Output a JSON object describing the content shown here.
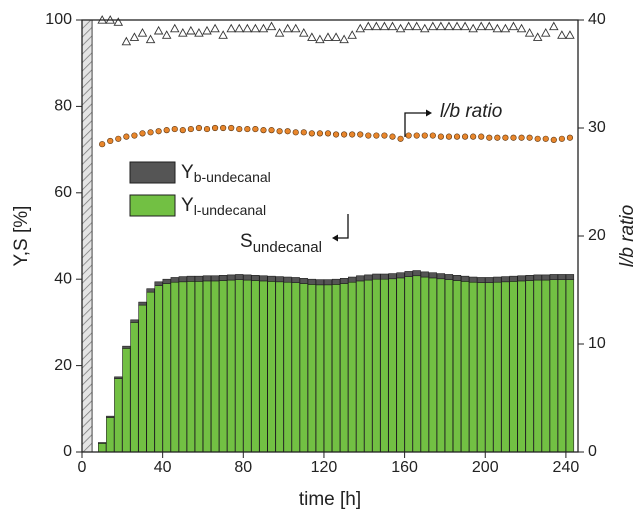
{
  "chart_data": {
    "type": "bar",
    "xlabel": "time [h]",
    "ylabel": "Y,S [%]",
    "y2label": "l/b ratio",
    "xlim": [
      0,
      246
    ],
    "xticks": [
      0,
      40,
      80,
      120,
      160,
      200,
      240
    ],
    "ylim": [
      0,
      100
    ],
    "yticks": [
      0,
      20,
      40,
      60,
      80,
      100
    ],
    "y2lim": [
      0,
      40
    ],
    "y2ticks": [
      0,
      10,
      20,
      30,
      40
    ],
    "shaded_region": [
      0,
      5
    ],
    "legend": "center left",
    "x": [
      10,
      14,
      18,
      22,
      26,
      30,
      34,
      38,
      42,
      46,
      50,
      54,
      58,
      62,
      66,
      70,
      74,
      78,
      82,
      86,
      90,
      94,
      98,
      102,
      106,
      110,
      114,
      118,
      122,
      126,
      130,
      134,
      138,
      142,
      146,
      150,
      154,
      158,
      162,
      166,
      170,
      174,
      178,
      182,
      186,
      190,
      194,
      198,
      202,
      206,
      210,
      214,
      218,
      222,
      226,
      230,
      234,
      238,
      242
    ],
    "series": [
      {
        "name": "Y",
        "name_sub": "l-undecanal",
        "type": "bar",
        "color": "#72c043",
        "values": [
          2,
          8,
          17,
          24,
          30,
          34,
          37,
          38.5,
          39,
          39.3,
          39.4,
          39.5,
          39.5,
          39.6,
          39.6,
          39.7,
          39.8,
          39.9,
          39.8,
          39.7,
          39.6,
          39.5,
          39.4,
          39.3,
          39.2,
          39,
          38.8,
          38.7,
          38.7,
          38.8,
          39,
          39.3,
          39.6,
          39.8,
          40,
          40,
          40.1,
          40.3,
          40.6,
          40.8,
          40.5,
          40.3,
          40.1,
          39.9,
          39.7,
          39.5,
          39.3,
          39.2,
          39.2,
          39.3,
          39.4,
          39.5,
          39.6,
          39.7,
          39.8,
          39.8,
          39.9,
          39.9,
          39.9
        ]
      },
      {
        "name": "Y",
        "name_sub": "b-undecanal",
        "type": "bar",
        "color": "#555555",
        "values": [
          0.2,
          0.3,
          0.4,
          0.5,
          0.6,
          0.7,
          0.8,
          0.9,
          1,
          1.1,
          1.2,
          1.2,
          1.2,
          1.2,
          1.2,
          1.2,
          1.2,
          1.2,
          1.2,
          1.2,
          1.2,
          1.2,
          1.2,
          1.2,
          1.2,
          1.2,
          1.2,
          1.2,
          1.2,
          1.2,
          1.2,
          1.2,
          1.2,
          1.2,
          1.2,
          1.2,
          1.2,
          1.2,
          1.2,
          1.2,
          1.2,
          1.2,
          1.2,
          1.2,
          1.2,
          1.2,
          1.2,
          1.2,
          1.2,
          1.2,
          1.2,
          1.2,
          1.2,
          1.2,
          1.2,
          1.2,
          1.2,
          1.2,
          1.2
        ]
      },
      {
        "type": "scatter",
        "marker": "triangle",
        "color": "#333333",
        "values": [
          100,
          100,
          99.5,
          95,
          96,
          97,
          95.5,
          97.5,
          96.5,
          98,
          97,
          97.5,
          97,
          97.5,
          98,
          96.5,
          98,
          98,
          98,
          98,
          98,
          98.5,
          97,
          98,
          98,
          97,
          96,
          95.5,
          96,
          96,
          95.5,
          96.5,
          98,
          98.5,
          98.5,
          98.5,
          98.5,
          98,
          98.5,
          98.5,
          98,
          98.5,
          98.5,
          98.5,
          98.5,
          98.5,
          98,
          98.5,
          98.5,
          98,
          98,
          98.5,
          98,
          97,
          96,
          97,
          98.5,
          96.5,
          96.5
        ]
      },
      {
        "type": "scatter",
        "marker": "circle",
        "color": "#e8862c",
        "axis": "y2",
        "values": [
          28.5,
          28.8,
          29,
          29.2,
          29.3,
          29.5,
          29.6,
          29.7,
          29.8,
          29.9,
          29.8,
          29.9,
          30,
          29.9,
          30,
          30,
          30,
          29.9,
          29.9,
          29.9,
          29.8,
          29.8,
          29.7,
          29.7,
          29.6,
          29.6,
          29.5,
          29.5,
          29.5,
          29.4,
          29.4,
          29.4,
          29.4,
          29.3,
          29.3,
          29.3,
          29.2,
          29,
          29.3,
          29.3,
          29.3,
          29.3,
          29.2,
          29.2,
          29.2,
          29.2,
          29.2,
          29.2,
          29.1,
          29.1,
          29.1,
          29.1,
          29.1,
          29.1,
          29,
          29,
          28.9,
          29,
          29.1
        ]
      }
    ],
    "annotations": [
      {
        "text": "S",
        "sub": "undecanal"
      },
      {
        "text": "l/b ratio"
      }
    ]
  }
}
